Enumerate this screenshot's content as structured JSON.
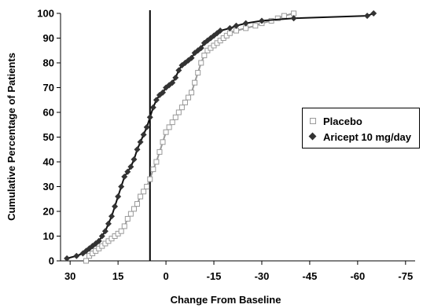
{
  "chart_data": {
    "type": "line",
    "title": "",
    "xlabel": "Change From Baseline",
    "ylabel": "Cumulative Percentage of Patients",
    "xlim": [
      33,
      -78
    ],
    "ylim": [
      0,
      100
    ],
    "x_ticks": [
      "30",
      "15",
      "0",
      "-15",
      "-30",
      "-45",
      "-60",
      "-75"
    ],
    "y_ticks": [
      "0",
      "10",
      "20",
      "30",
      "40",
      "50",
      "60",
      "70",
      "80",
      "90",
      "100"
    ],
    "grid": false,
    "legend_position": "right",
    "reference_line_x": 5,
    "series": [
      {
        "name": "Placebo",
        "color": "#9a9a9a",
        "marker": "open-square",
        "points": [
          [
            25,
            0
          ],
          [
            24,
            2
          ],
          [
            23,
            3
          ],
          [
            22,
            4
          ],
          [
            21,
            5
          ],
          [
            20,
            6
          ],
          [
            19,
            7
          ],
          [
            18,
            8
          ],
          [
            17,
            9
          ],
          [
            16,
            10
          ],
          [
            15,
            11
          ],
          [
            14,
            12
          ],
          [
            13,
            14
          ],
          [
            12,
            17
          ],
          [
            11,
            19
          ],
          [
            10,
            21
          ],
          [
            9,
            23
          ],
          [
            8,
            26
          ],
          [
            7,
            28
          ],
          [
            6,
            30
          ],
          [
            5,
            33
          ],
          [
            4,
            37
          ],
          [
            3,
            40
          ],
          [
            2,
            44
          ],
          [
            1,
            48
          ],
          [
            0,
            52
          ],
          [
            -1,
            54
          ],
          [
            -2,
            56
          ],
          [
            -3,
            58
          ],
          [
            -4,
            60
          ],
          [
            -5,
            62
          ],
          [
            -6,
            64
          ],
          [
            -7,
            66
          ],
          [
            -8,
            68
          ],
          [
            -9,
            72
          ],
          [
            -10,
            76
          ],
          [
            -11,
            80
          ],
          [
            -12,
            83
          ],
          [
            -13,
            85
          ],
          [
            -14,
            86
          ],
          [
            -15,
            87
          ],
          [
            -16,
            88
          ],
          [
            -17,
            89
          ],
          [
            -18,
            90
          ],
          [
            -19,
            91
          ],
          [
            -20,
            92
          ],
          [
            -22,
            93
          ],
          [
            -25,
            94
          ],
          [
            -28,
            95
          ],
          [
            -30,
            96
          ],
          [
            -33,
            97
          ],
          [
            -35,
            98
          ],
          [
            -37,
            99
          ],
          [
            -40,
            100
          ]
        ]
      },
      {
        "name": "Aricept 10 mg/day",
        "color": "#111111",
        "marker": "filled-diamond",
        "points": [
          [
            31,
            1
          ],
          [
            28,
            2
          ],
          [
            26,
            3
          ],
          [
            25,
            4
          ],
          [
            24,
            5
          ],
          [
            23,
            6
          ],
          [
            22,
            7
          ],
          [
            21,
            8
          ],
          [
            20,
            10
          ],
          [
            19,
            12
          ],
          [
            18,
            15
          ],
          [
            17,
            18
          ],
          [
            16,
            22
          ],
          [
            15,
            26
          ],
          [
            14,
            30
          ],
          [
            13,
            34
          ],
          [
            12,
            36
          ],
          [
            11,
            38
          ],
          [
            10,
            41
          ],
          [
            9,
            45
          ],
          [
            8,
            48
          ],
          [
            7,
            51
          ],
          [
            6,
            54
          ],
          [
            5,
            58
          ],
          [
            4,
            62
          ],
          [
            3,
            65
          ],
          [
            2,
            67
          ],
          [
            1,
            68
          ],
          [
            0,
            70
          ],
          [
            -1,
            71
          ],
          [
            -2,
            72
          ],
          [
            -3,
            74
          ],
          [
            -4,
            77
          ],
          [
            -5,
            79
          ],
          [
            -6,
            80
          ],
          [
            -7,
            81
          ],
          [
            -8,
            82
          ],
          [
            -9,
            84
          ],
          [
            -10,
            85
          ],
          [
            -11,
            86
          ],
          [
            -12,
            88
          ],
          [
            -13,
            89
          ],
          [
            -14,
            90
          ],
          [
            -15,
            91
          ],
          [
            -16,
            92
          ],
          [
            -17,
            93
          ],
          [
            -20,
            94
          ],
          [
            -22,
            95
          ],
          [
            -25,
            96
          ],
          [
            -30,
            97
          ],
          [
            -40,
            98
          ],
          [
            -63,
            99
          ],
          [
            -65,
            100
          ]
        ]
      }
    ]
  }
}
